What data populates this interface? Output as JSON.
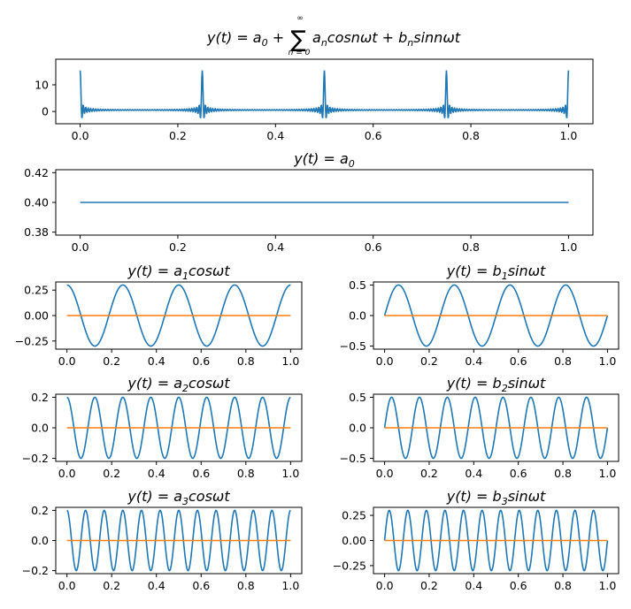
{
  "figure": {
    "title_parts": {
      "lhs": "y(t) = a",
      "lhs_sub": "0",
      "plus1": " + ",
      "sum": "∑",
      "sum_top": "∞",
      "sum_bottom": "n = 0",
      "term1": "a",
      "term1_sub": "n",
      "term1_rest": "cosnωt + b",
      "term2_sub": "n",
      "term2_rest": "sinnωt"
    }
  },
  "colors": {
    "series_main": "#1f77b4",
    "series_baseline": "#ff7f0e"
  },
  "chart_data": [
    {
      "id": "sum",
      "type": "line",
      "title": "y(t) = a0 + Σ(n=0..∞) an cos nωt + bn sin nωt",
      "title_main": "",
      "title_sub": "",
      "x_range": [
        0,
        1
      ],
      "xlim": [
        -0.05,
        1.05
      ],
      "ylim": [
        -4.6,
        19.6
      ],
      "xticks": [
        "0.0",
        "0.2",
        "0.4",
        "0.6",
        "0.8",
        "1.0"
      ],
      "yticks": [
        "0",
        "10"
      ],
      "series": [
        {
          "formula": "sum",
          "a0": 0.4,
          "n_terms": 50,
          "color": "#1f77b4"
        }
      ]
    },
    {
      "id": "a0",
      "type": "line",
      "title": "y(t) = a0",
      "title_main": "y(t) = a",
      "title_sub": "0",
      "x_range": [
        0,
        1
      ],
      "xlim": [
        -0.05,
        1.05
      ],
      "ylim": [
        0.378,
        0.422
      ],
      "xticks": [
        "0.0",
        "0.2",
        "0.4",
        "0.6",
        "0.8",
        "1.0"
      ],
      "yticks": [
        "0.38",
        "0.40",
        "0.42"
      ],
      "series": [
        {
          "formula": "const",
          "value": 0.4,
          "color": "#1f77b4"
        }
      ]
    },
    {
      "id": "a1",
      "type": "line",
      "title": "y(t) = a1 cosωt",
      "title_main": "y(t) = a",
      "title_sub": "1",
      "title_rest": "cosωt",
      "x_range": [
        0,
        1
      ],
      "xlim": [
        -0.05,
        1.05
      ],
      "ylim": [
        -0.33,
        0.33
      ],
      "xticks": [
        "0.0",
        "0.2",
        "0.4",
        "0.6",
        "0.8",
        "1.0"
      ],
      "yticks": [
        "−0.25",
        "0.00",
        "0.25"
      ],
      "series": [
        {
          "formula": "cos",
          "amplitude": 0.3,
          "cycles": 4,
          "color": "#1f77b4"
        },
        {
          "formula": "const",
          "value": 0,
          "color": "#ff7f0e"
        }
      ]
    },
    {
      "id": "b1",
      "type": "line",
      "title": "y(t) = b1 sinωt",
      "title_main": "y(t) = b",
      "title_sub": "1",
      "title_rest": "sinωt",
      "x_range": [
        0,
        1
      ],
      "xlim": [
        -0.05,
        1.05
      ],
      "ylim": [
        -0.55,
        0.55
      ],
      "xticks": [
        "0.0",
        "0.2",
        "0.4",
        "0.6",
        "0.8",
        "1.0"
      ],
      "yticks": [
        "−0.5",
        "0.0",
        "0.5"
      ],
      "series": [
        {
          "formula": "sin",
          "amplitude": 0.5,
          "cycles": 4,
          "color": "#1f77b4"
        },
        {
          "formula": "const",
          "value": 0,
          "color": "#ff7f0e"
        }
      ]
    },
    {
      "id": "a2",
      "type": "line",
      "title": "y(t) = a2 cosωt",
      "title_main": "y(t) = a",
      "title_sub": "2",
      "title_rest": "cosωt",
      "x_range": [
        0,
        1
      ],
      "xlim": [
        -0.05,
        1.05
      ],
      "ylim": [
        -0.22,
        0.22
      ],
      "xticks": [
        "0.0",
        "0.2",
        "0.4",
        "0.6",
        "0.8",
        "1.0"
      ],
      "yticks": [
        "−0.2",
        "0.0",
        "0.2"
      ],
      "series": [
        {
          "formula": "cos",
          "amplitude": 0.2,
          "cycles": 8,
          "color": "#1f77b4"
        },
        {
          "formula": "const",
          "value": 0,
          "color": "#ff7f0e"
        }
      ]
    },
    {
      "id": "b2",
      "type": "line",
      "title": "y(t) = b2 sinωt",
      "title_main": "y(t) = b",
      "title_sub": "2",
      "title_rest": "sinωt",
      "x_range": [
        0,
        1
      ],
      "xlim": [
        -0.05,
        1.05
      ],
      "ylim": [
        -0.55,
        0.55
      ],
      "xticks": [
        "0.0",
        "0.2",
        "0.4",
        "0.6",
        "0.8",
        "1.0"
      ],
      "yticks": [
        "−0.5",
        "0.0",
        "0.5"
      ],
      "series": [
        {
          "formula": "sin",
          "amplitude": 0.5,
          "cycles": 8,
          "color": "#1f77b4"
        },
        {
          "formula": "const",
          "value": 0,
          "color": "#ff7f0e"
        }
      ]
    },
    {
      "id": "a3",
      "type": "line",
      "title": "y(t) = a3 cosωt",
      "title_main": "y(t) = a",
      "title_sub": "3",
      "title_rest": "cosωt",
      "x_range": [
        0,
        1
      ],
      "xlim": [
        -0.05,
        1.05
      ],
      "ylim": [
        -0.22,
        0.22
      ],
      "xticks": [
        "0.0",
        "0.2",
        "0.4",
        "0.6",
        "0.8",
        "1.0"
      ],
      "yticks": [
        "−0.2",
        "0.0",
        "0.2"
      ],
      "series": [
        {
          "formula": "cos",
          "amplitude": 0.2,
          "cycles": 12,
          "color": "#1f77b4"
        },
        {
          "formula": "const",
          "value": 0,
          "color": "#ff7f0e"
        }
      ]
    },
    {
      "id": "b3",
      "type": "line",
      "title": "y(t) = b3 sinωt",
      "title_main": "y(t) = b",
      "title_sub": "3",
      "title_rest": "sinωt",
      "x_range": [
        0,
        1
      ],
      "xlim": [
        -0.05,
        1.05
      ],
      "ylim": [
        -0.33,
        0.33
      ],
      "xticks": [
        "0.0",
        "0.2",
        "0.4",
        "0.6",
        "0.8",
        "1.0"
      ],
      "yticks": [
        "−0.25",
        "0.00",
        "0.25"
      ],
      "series": [
        {
          "formula": "sin",
          "amplitude": 0.3,
          "cycles": 12,
          "color": "#1f77b4"
        },
        {
          "formula": "const",
          "value": 0,
          "color": "#ff7f0e"
        }
      ]
    }
  ]
}
